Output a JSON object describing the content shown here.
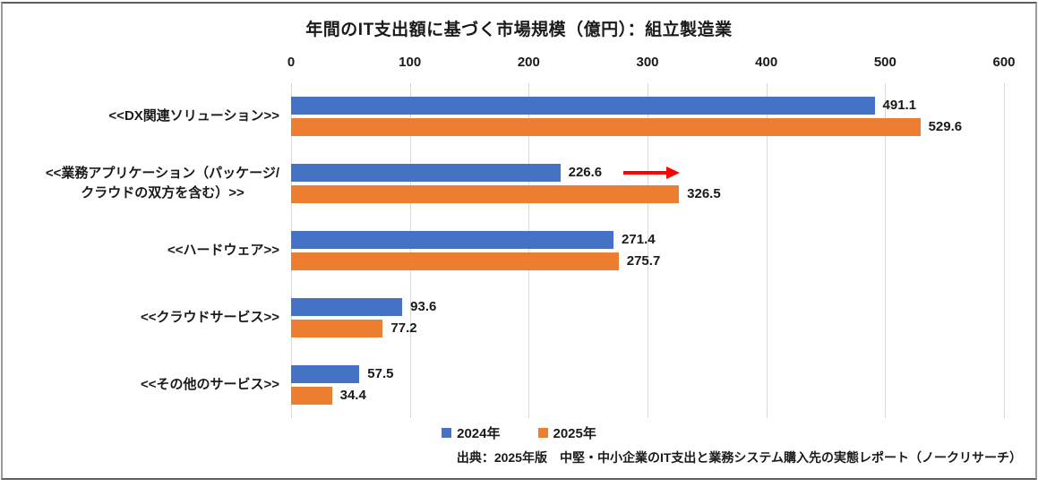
{
  "title": "年間のIT支出額に基づく市場規模（億円）：組立製造業",
  "chart_data": {
    "type": "bar",
    "orientation": "horizontal",
    "title": "年間のIT支出額に基づく市場規模（億円）：組立製造業",
    "categories": [
      "<<DX関連ソリューション>>",
      "<<業務アプリケーション（パッケージ/クラウドの双方を含む）>>",
      "<<ハードウェア>>",
      "<<クラウドサービス>>",
      "<<その他のサービス>>"
    ],
    "category_label_lines": [
      [
        "<<DX関連ソリューション>>"
      ],
      [
        "<<業務アプリケーション（パッケージ/",
        "クラウドの双方を含む）>>"
      ],
      [
        "<<ハードウェア>>"
      ],
      [
        "<<クラウドサービス>>"
      ],
      [
        "<<その他のサービス>>"
      ]
    ],
    "series": [
      {
        "name": "2024年",
        "color": "#4472C4",
        "values": [
          491.1,
          226.6,
          271.4,
          93.6,
          57.5
        ]
      },
      {
        "name": "2025年",
        "color": "#ED7D31",
        "values": [
          529.6,
          326.5,
          275.7,
          77.2,
          34.4
        ]
      }
    ],
    "xlim": [
      0,
      600
    ],
    "xticks": [
      0,
      100,
      200,
      300,
      400,
      500,
      600
    ],
    "grid": true,
    "gridline_color": "#D9D9D9",
    "axis_position": "top",
    "legend_position": "bottom",
    "annotation": {
      "type": "arrow-right",
      "color": "#FF0000",
      "category_index": 1,
      "series_index": 0
    }
  },
  "legend": {
    "items": [
      {
        "label": "2024年",
        "color": "#4472C4"
      },
      {
        "label": "2025年",
        "color": "#ED7D31"
      }
    ]
  },
  "source_note": "出典：2025年版　中堅・中小企業のIT支出と業務システム購入先の実態レポート（ノークリサーチ）"
}
